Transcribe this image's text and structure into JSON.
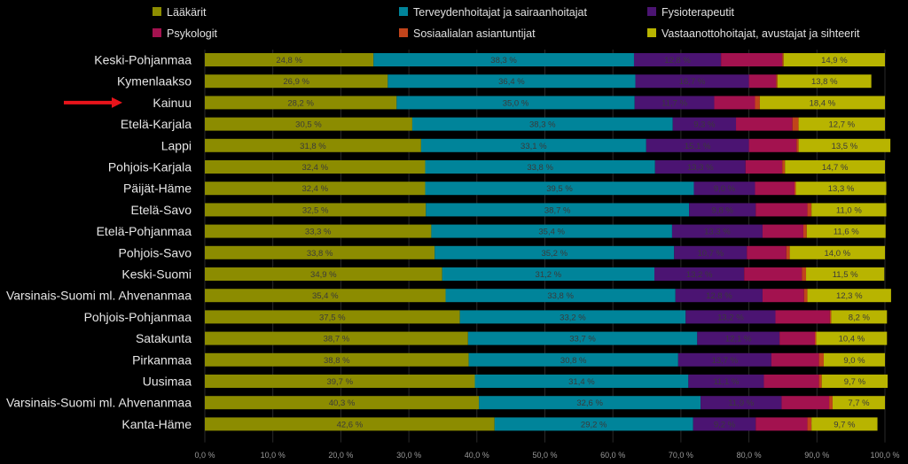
{
  "chart_data": {
    "type": "bar",
    "orientation": "horizontal",
    "stacked": true,
    "categories": [
      "Keski-Pohjanmaa",
      "Kymenlaakso",
      "Kainuu",
      "Etelä-Karjala",
      "Lappi",
      "Pohjois-Karjala",
      "Päijät-Häme",
      "Etelä-Savo",
      "Etelä-Pohjanmaa",
      "Pohjois-Savo",
      "Keski-Suomi",
      "Varsinais-Suomi ml. Ahvenanmaa",
      "Pohjois-Pohjanmaa",
      "Satakunta",
      "Pirkanmaa",
      "Uusimaa",
      "Varsinais-Suomi ml. Ahvenanmaa",
      "Kanta-Häme"
    ],
    "series": [
      {
        "name": "Lääkärit",
        "color": "#8c8c00",
        "values": [
          24.8,
          26.9,
          28.2,
          30.5,
          31.8,
          32.4,
          32.4,
          32.5,
          33.3,
          33.8,
          34.9,
          35.4,
          37.5,
          38.7,
          38.8,
          39.7,
          40.3,
          42.6
        ],
        "labels": [
          "24,8 %",
          "26,9 %",
          "28,2 %",
          "30,5 %",
          "31,8 %",
          "32,4 %",
          "32,4 %",
          "32,5 %",
          "33,3 %",
          "33,8 %",
          "34,9 %",
          "35,4 %",
          "37,5 %",
          "38,7 %",
          "38,8 %",
          "39,7 %",
          "40,3 %",
          "42,6 %"
        ]
      },
      {
        "name": "Terveydenhoitajat ja sairaanhoitajat",
        "color": "#00849a",
        "values": [
          38.3,
          36.4,
          35.0,
          38.3,
          33.1,
          33.8,
          39.5,
          38.7,
          35.4,
          35.2,
          31.2,
          33.8,
          33.2,
          33.7,
          30.8,
          31.4,
          32.6,
          29.2
        ],
        "labels": [
          "38,3 %",
          "36,4 %",
          "35,0 %",
          "38,3 %",
          "33,1 %",
          "33,8 %",
          "39,5 %",
          "38,7 %",
          "35,4 %",
          "35,2 %",
          "31,2 %",
          "33,8 %",
          "33,2 %",
          "33,7 %",
          "30,8 %",
          "31,4 %",
          "32,6 %",
          "29,2 %"
        ]
      },
      {
        "name": "Fysioterapeutit",
        "color": "#4b1472",
        "values": [
          12.8,
          16.7,
          11.7,
          9.3,
          15.1,
          13.3,
          9.0,
          9.8,
          13.3,
          10.7,
          13.2,
          12.8,
          13.2,
          12.1,
          13.7,
          11.1,
          11.9,
          9.2
        ],
        "labels": [
          "12,8 %",
          "16,7 %",
          "11,7 %",
          "9,3 %",
          "15,1 %",
          "13,3 %",
          "9,0 %",
          "9,8 %",
          "13,3 %",
          "10,7 %",
          "13,2 %",
          "12,8 %",
          "13,2 %",
          "12,1 %",
          "13,7 %",
          "11,1 %",
          "11,9 %",
          "9,2 %"
        ]
      },
      {
        "name": "Psykologit",
        "color": "#a3124f",
        "values": [
          9.0,
          4.0,
          6.0,
          8.3,
          7.0,
          5.4,
          5.8,
          7.6,
          6.0,
          5.8,
          8.5,
          6.1,
          8.0,
          5.2,
          7.0,
          8.1,
          7.0,
          7.6
        ],
        "labels": [
          "",
          "",
          "",
          "",
          "",
          "",
          "",
          "",
          "",
          "",
          "",
          "",
          "",
          "",
          "",
          "",
          "",
          ""
        ]
      },
      {
        "name": "Sosiaalialan asiantuntijat",
        "color": "#c1441b",
        "values": [
          0.2,
          0.2,
          0.7,
          0.9,
          0.3,
          0.4,
          0.2,
          0.6,
          0.5,
          0.5,
          0.6,
          0.5,
          0.2,
          0.2,
          0.7,
          0.4,
          0.5,
          0.6
        ],
        "labels": [
          "",
          "",
          "",
          "",
          "",
          "",
          "",
          "",
          "",
          "",
          "",
          "",
          "",
          "",
          "",
          "",
          "",
          ""
        ]
      },
      {
        "name": "Vastaanottohoitajat, avustajat ja sihteerit",
        "color": "#b8b400",
        "values": [
          14.9,
          13.8,
          18.4,
          12.7,
          13.5,
          14.7,
          13.3,
          11.0,
          11.6,
          14.0,
          11.5,
          12.3,
          8.2,
          10.4,
          9.0,
          9.7,
          7.7,
          9.7
        ],
        "labels": [
          "14,9 %",
          "13,8 %",
          "18,4 %",
          "12,7 %",
          "13,5 %",
          "14,7 %",
          "13,3 %",
          "11,0 %",
          "11,6 %",
          "14,0 %",
          "11,5 %",
          "12,3 %",
          "8,2 %",
          "10,4 %",
          "9,0 %",
          "9,7 %",
          "7,7 %",
          "9,7 %"
        ]
      }
    ],
    "psykologit_suffix": "%",
    "xlim": [
      0,
      100
    ],
    "xticks": [
      "0,0 %",
      "10,0 %",
      "20,0 %",
      "30,0 %",
      "40,0 %",
      "50,0 %",
      "60,0 %",
      "70,0 %",
      "80,0 %",
      "90,0 %",
      "100,0 %"
    ],
    "highlight_category": "Kainuu",
    "highlight_marker": "red-arrow",
    "legend_position": "top"
  }
}
